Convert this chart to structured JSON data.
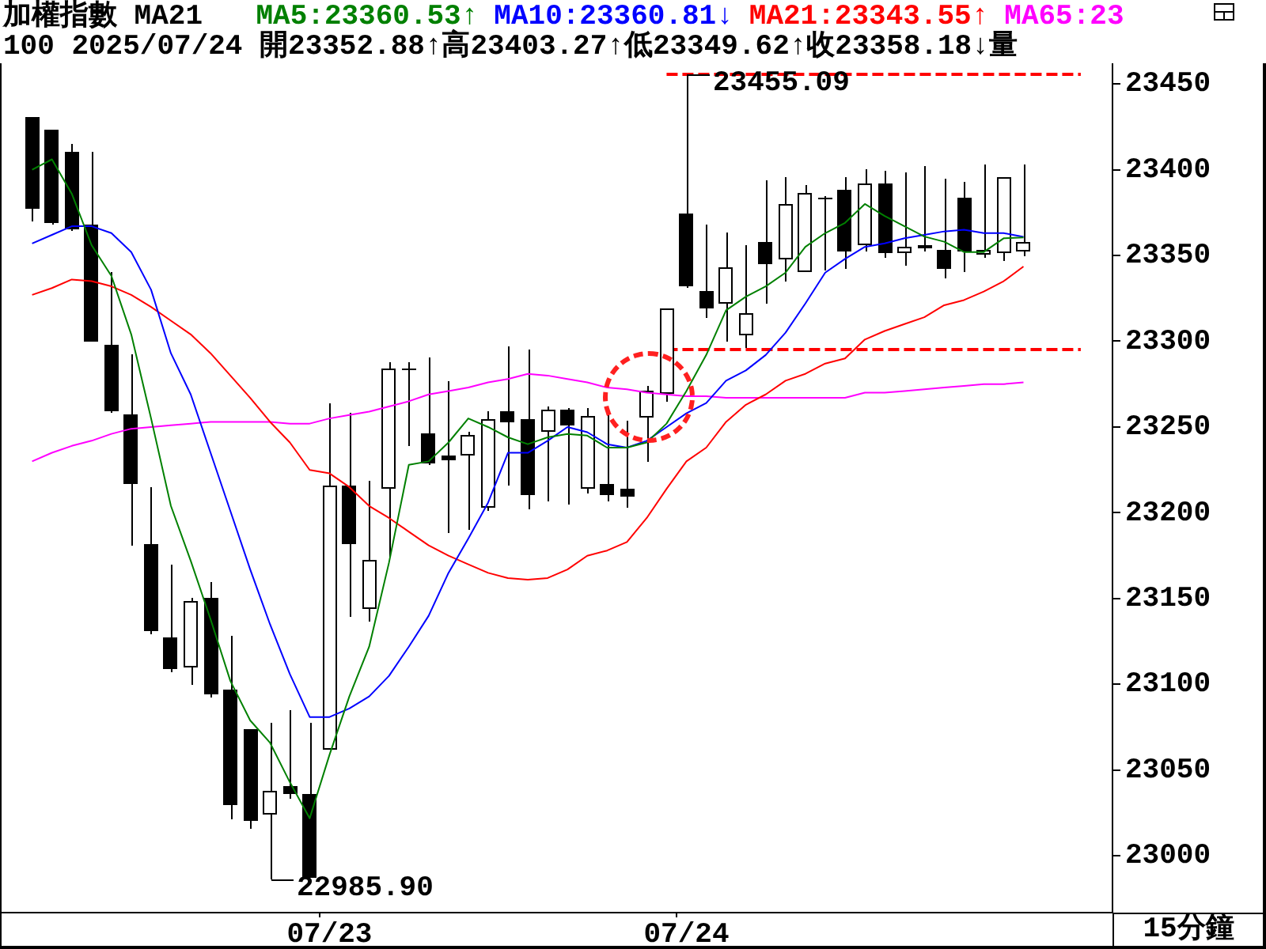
{
  "chart_data": {
    "type": "candlestick",
    "title": "加權指數 MA21",
    "subtitle": "100 2025/07/24 開23352.88↑高23403.27↑低23349.62↑收23358.18↓量",
    "xlabel": "15分鐘",
    "categories": [
      null,
      null,
      null,
      null,
      null,
      null,
      null,
      null,
      null,
      null,
      null,
      null,
      null,
      null,
      null,
      "07/23",
      null,
      null,
      null,
      null,
      null,
      null,
      null,
      null,
      null,
      null,
      null,
      null,
      null,
      null,
      null,
      null,
      null,
      "07/24",
      null,
      null,
      null,
      null,
      null,
      null,
      null,
      null,
      null,
      null,
      null,
      null,
      null,
      null,
      null,
      null,
      null
    ],
    "color": "#000000",
    "colors": [
      "#000000",
      "#000000",
      "#000000",
      "#000000",
      "#000000",
      "#000000",
      "#000000",
      "#000000",
      "#ffffff",
      "#000000",
      "#000000",
      "#000000",
      "#ffffff",
      "#000000",
      "#000000",
      "#ffffff",
      "#000000",
      "#ffffff",
      "#ffffff",
      "#000000",
      "#000000",
      "#000000",
      "#ffffff",
      "#ffffff",
      "#000000",
      "#000000",
      "#ffffff",
      "#000000",
      "#ffffff",
      "#000000",
      "#000000",
      "#ffffff",
      "#ffffff",
      "#000000",
      "#000000",
      "#ffffff",
      "#ffffff",
      "#000000",
      "#ffffff",
      "#ffffff",
      "#000000",
      "#000000",
      "#ffffff",
      "#000000",
      "#ffffff",
      "#000000",
      "#000000",
      "#000000",
      "#ffffff",
      "#ffffff",
      "#ffffff"
    ],
    "ohlc": [
      [
        23431,
        23431,
        23370,
        23378
      ],
      [
        23423,
        23423,
        23368,
        23370
      ],
      [
        23410,
        23415,
        23364,
        23366
      ],
      [
        23368,
        23410,
        23300,
        23301
      ],
      [
        23298,
        23340,
        23258,
        23260
      ],
      [
        23257,
        23292,
        23181,
        23218
      ],
      [
        23182,
        23215,
        23129,
        23132
      ],
      [
        23127,
        23170,
        23107,
        23110
      ],
      [
        23111,
        23150,
        23100,
        23149
      ],
      [
        23150,
        23160,
        23092,
        23095
      ],
      [
        23097,
        23128,
        23021,
        23031
      ],
      [
        23074,
        23074,
        23016,
        23021
      ],
      [
        23025,
        23078,
        22985.9,
        23038
      ],
      [
        23041,
        23085,
        23033,
        23037
      ],
      [
        23036,
        23078,
        22988,
        22988
      ],
      [
        23063,
        23264,
        23063,
        23216
      ],
      [
        23216,
        23258,
        23139,
        23183
      ],
      [
        23145,
        23219,
        23137,
        23173
      ],
      [
        23215,
        23288,
        23174,
        23284
      ],
      [
        23284,
        23288,
        23239,
        23284
      ],
      [
        23246,
        23291,
        23228,
        23230
      ],
      [
        23233,
        23277,
        23188,
        23232
      ],
      [
        23234,
        23247,
        23190,
        23245
      ],
      [
        23204,
        23259,
        23201,
        23255
      ],
      [
        23259,
        23297,
        23216,
        23254
      ],
      [
        23255,
        23295,
        23202,
        23211
      ],
      [
        23248,
        23262,
        23207,
        23260
      ],
      [
        23260,
        23261,
        23205,
        23252
      ],
      [
        23215,
        23261,
        23211,
        23256
      ],
      [
        23217,
        23258,
        23207,
        23211
      ],
      [
        23214,
        23254,
        23203,
        23210
      ],
      [
        23256,
        23274,
        23230,
        23271
      ],
      [
        23270,
        23319,
        23265,
        23319
      ],
      [
        23374,
        23455.09,
        23331,
        23333
      ],
      [
        23329,
        23368,
        23314,
        23320
      ],
      [
        23323,
        23363,
        23300,
        23343
      ],
      [
        23304,
        23356,
        23296,
        23316
      ],
      [
        23358,
        23394,
        23322,
        23346
      ],
      [
        23349,
        23396,
        23335,
        23380
      ],
      [
        23341,
        23391,
        23340,
        23386
      ],
      [
        23384,
        23385,
        23341,
        23384
      ],
      [
        23388,
        23396,
        23342,
        23353
      ],
      [
        23357,
        23400,
        23352,
        23392
      ],
      [
        23392,
        23399,
        23349,
        23352
      ],
      [
        23352,
        23398,
        23344,
        23355
      ],
      [
        23356,
        23402,
        23352,
        23355
      ],
      [
        23353,
        23395,
        23337,
        23343
      ],
      [
        23384,
        23393,
        23340,
        23353
      ],
      [
        23351,
        23403,
        23349,
        23353
      ],
      [
        23352,
        23396,
        23347,
        23396
      ],
      [
        23352.88,
        23403.27,
        23349.62,
        23358.18
      ]
    ],
    "series": [
      {
        "name": "MA5:23360.53↑",
        "type": "line",
        "color": "#008000",
        "values": [
          23400,
          23406,
          23386,
          23356,
          23338,
          23304,
          23255,
          23204,
          23172,
          23138,
          23102,
          23079,
          23066,
          23043,
          23022,
          23059,
          23093,
          23122,
          23171,
          23228,
          23230,
          23241,
          23255,
          23250,
          23244,
          23240,
          23244,
          23246,
          23245,
          23238,
          23238,
          23241,
          23252,
          23271,
          23292,
          23318,
          23326,
          23332,
          23340,
          23355,
          23363,
          23369,
          23380,
          23373,
          23367,
          23361,
          23358,
          23352,
          23352,
          23360,
          23360.53
        ]
      },
      {
        "name": "MA10:23360.81↓",
        "type": "line",
        "color": "#0000ff",
        "values": [
          23357,
          23362,
          23367,
          23367,
          23363,
          23352,
          23330,
          23293,
          23269,
          23235,
          23201,
          23167,
          23135,
          23106,
          23081,
          23081,
          23086,
          23093,
          23105,
          23122,
          23140,
          23165,
          23185,
          23206,
          23235,
          23235,
          23242,
          23250,
          23247,
          23240,
          23238,
          23242,
          23250,
          23258,
          23264,
          23277,
          23283,
          23292,
          23305,
          23322,
          23340,
          23348,
          23355,
          23357,
          23360,
          23362,
          23364,
          23365,
          23363,
          23363,
          23360.81
        ]
      },
      {
        "name": "MA21:23343.55↑",
        "type": "line",
        "color": "#ff0000",
        "values": [
          23327,
          23331,
          23336,
          23335,
          23332,
          23327,
          23320,
          23312,
          23304,
          23293,
          23280,
          23267,
          23253,
          23241,
          23225,
          23223,
          23215,
          23204,
          23197,
          23189,
          23181,
          23175,
          23170,
          23165,
          23162,
          23161,
          23162,
          23167,
          23175,
          23178,
          23183,
          23197,
          23214,
          23230,
          23238,
          23253,
          23263,
          23269,
          23277,
          23281,
          23287,
          23290,
          23301,
          23306,
          23310,
          23314,
          23321,
          23324,
          23329,
          23335,
          23343.55
        ]
      },
      {
        "name": "MA65:23",
        "type": "line",
        "color": "#ff00ff",
        "values": [
          23230,
          23235,
          23239,
          23242,
          23246,
          23249,
          23250,
          23251,
          23252,
          23253,
          23253,
          23253,
          23253,
          23252,
          23252,
          23255,
          23257,
          23259,
          23262,
          23265,
          23269,
          23271,
          23273,
          23276,
          23278,
          23281,
          23280,
          23278,
          23276,
          23273,
          23272,
          23270,
          23269,
          23268,
          23268,
          23267,
          23267,
          23267,
          23267,
          23267,
          23267,
          23267,
          23270,
          23270,
          23271,
          23272,
          23273,
          23274,
          23275,
          23275,
          23276
        ]
      }
    ],
    "ylim": [
      22967,
      23462
    ],
    "yticks": [
      23000,
      23050,
      23100,
      23150,
      23200,
      23250,
      23300,
      23350,
      23400,
      23450
    ],
    "ref_lines": [
      {
        "axis": "y",
        "value": 23455.09,
        "color": "#ff0000",
        "line_style": "dashed"
      },
      {
        "axis": "y",
        "value": 23295,
        "color": "#ff0000",
        "line_style": "dashed"
      }
    ],
    "annotations": [
      {
        "text": "23455.09",
        "x": "07/24",
        "y": 23455.09
      },
      "22985.90"
    ],
    "legend": "top",
    "marker": "none"
  }
}
